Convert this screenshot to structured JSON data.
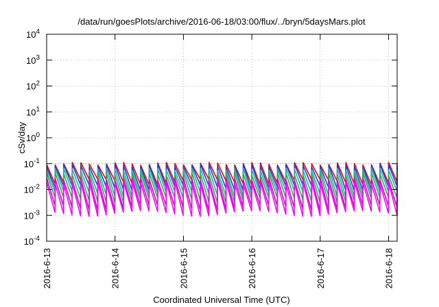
{
  "chart_data": {
    "type": "line",
    "title": "/data/run/goesPlots/archive/2016-06-18/03:00/flux/../bryn/5daysMars.plot",
    "xlabel": "Coordinated Universal Time (UTC)",
    "ylabel": "cSv/day",
    "y_scale": "log",
    "ylim": [
      0.0001,
      10000
    ],
    "xlim": [
      "2016-06-13T00:00",
      "2016-06-18T03:00"
    ],
    "x_ticks": [
      "2016-6-13",
      "2016-6-14",
      "2016-6-15",
      "2016-6-16",
      "2016-6-17",
      "2016-6-18"
    ],
    "y_ticks": [
      {
        "value": 0.0001,
        "base": "10",
        "exp": "-4"
      },
      {
        "value": 0.001,
        "base": "10",
        "exp": "-3"
      },
      {
        "value": 0.01,
        "base": "10",
        "exp": "-2"
      },
      {
        "value": 0.1,
        "base": "10",
        "exp": "-1"
      },
      {
        "value": 1,
        "base": "10",
        "exp": "0"
      },
      {
        "value": 10,
        "base": "10",
        "exp": "1"
      },
      {
        "value": 100,
        "base": "10",
        "exp": "2"
      },
      {
        "value": 1000,
        "base": "10",
        "exp": "3"
      },
      {
        "value": 10000,
        "base": "10",
        "exp": "4"
      }
    ],
    "grid": true,
    "reference_line": {
      "value": 0.1,
      "color": "#e8a0a0"
    },
    "sawtooth_period_hours": 3,
    "series": [
      {
        "color": "#ff0000",
        "peak": 0.1,
        "trough": 0.02
      },
      {
        "color": "#1a3fd8",
        "peak": 0.085,
        "trough": 0.012
      },
      {
        "color": "#20b0b0",
        "peak": 0.06,
        "trough": 0.007
      },
      {
        "color": "#32a852",
        "peak": 0.04,
        "trough": 0.004
      },
      {
        "color": "#d000d0",
        "peak": 0.025,
        "trough": 0.002
      },
      {
        "color": "#ff00ff",
        "peak": 0.018,
        "trough": 0.0012
      }
    ]
  }
}
